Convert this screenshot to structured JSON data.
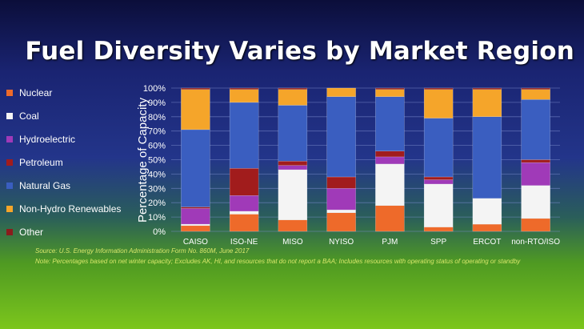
{
  "chart_data": {
    "type": "bar",
    "stacked": true,
    "title": "Fuel Diversity Varies by Market Region",
    "ylabel": "Percentage of Capacity",
    "xlabel": "",
    "ylim": [
      0,
      100
    ],
    "yticks": [
      "0%",
      "10%",
      "20%",
      "30%",
      "40%",
      "50%",
      "60%",
      "70%",
      "80%",
      "90%",
      "100%"
    ],
    "grid": true,
    "legend_position": "left",
    "categories": [
      "CAISO",
      "ISO-NE",
      "MISO",
      "NYISO",
      "PJM",
      "SPP",
      "ERCOT",
      "non-RTO/ISO"
    ],
    "series": [
      {
        "name": "Nuclear",
        "color": "#ee6a2a",
        "values": [
          4,
          12,
          8,
          13,
          18,
          3,
          5,
          9
        ]
      },
      {
        "name": "Coal",
        "color": "#f4f4f4",
        "values": [
          1,
          2,
          35,
          2,
          29,
          30,
          18,
          23
        ]
      },
      {
        "name": "Hydroelectric",
        "color": "#a03ab8",
        "values": [
          11,
          11,
          3,
          15,
          5,
          3,
          0,
          16
        ]
      },
      {
        "name": "Petroleum",
        "color": "#a11c1c",
        "values": [
          1,
          19,
          3,
          8,
          4,
          2,
          0,
          2
        ]
      },
      {
        "name": "Natural Gas",
        "color": "#3a5ec0",
        "values": [
          54,
          46,
          39,
          56,
          38,
          41,
          57,
          42
        ]
      },
      {
        "name": "Non-Hydro Renewables",
        "color": "#f5a52a",
        "values": [
          28,
          9,
          11,
          6,
          5,
          20,
          19,
          7
        ]
      },
      {
        "name": "Other",
        "color": "#8a1c1c",
        "values": [
          1,
          1,
          1,
          0,
          1,
          1,
          1,
          1
        ]
      }
    ]
  },
  "notes": {
    "source": "Source: U.S. Energy Information Administration Form No. 860M, June 2017",
    "footnote": "Note: Percentages based on net winter capacity; Excludes AK, HI, and resources that do not report a BAA; Includes resources with operating status of operating or standby"
  }
}
